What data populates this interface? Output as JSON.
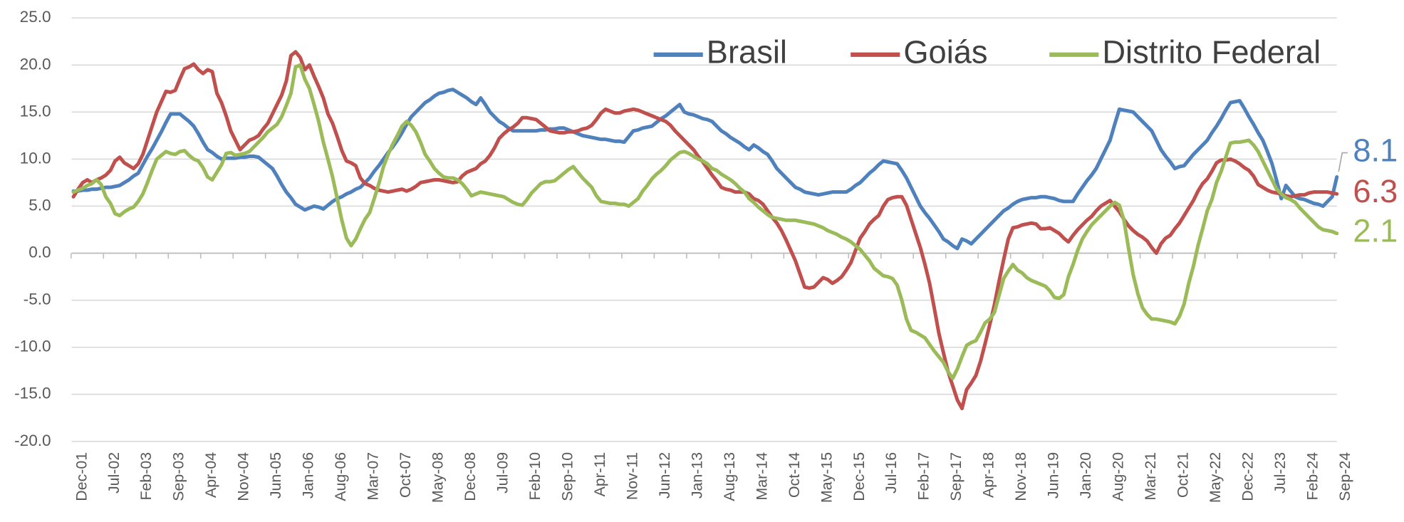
{
  "chart_data": {
    "type": "line",
    "categories": [
      "Dec-01",
      null,
      null,
      null,
      null,
      null,
      null,
      "Jul-02",
      null,
      null,
      null,
      null,
      null,
      null,
      "Feb-03",
      null,
      null,
      null,
      null,
      null,
      null,
      "Sep-03",
      null,
      null,
      null,
      null,
      null,
      null,
      "Apr-04",
      null,
      null,
      null,
      null,
      null,
      null,
      "Nov-04",
      null,
      null,
      null,
      null,
      null,
      null,
      "Jun-05",
      null,
      null,
      null,
      null,
      null,
      null,
      "Jan-06",
      null,
      null,
      null,
      null,
      null,
      null,
      "Aug-06",
      null,
      null,
      null,
      null,
      null,
      null,
      "Mar-07",
      null,
      null,
      null,
      null,
      null,
      null,
      "Oct-07",
      null,
      null,
      null,
      null,
      null,
      null,
      "May-08",
      null,
      null,
      null,
      null,
      null,
      null,
      "Dec-08",
      null,
      null,
      null,
      null,
      null,
      null,
      "Jul-09",
      null,
      null,
      null,
      null,
      null,
      null,
      "Feb-10",
      null,
      null,
      null,
      null,
      null,
      null,
      "Sep-10",
      null,
      null,
      null,
      null,
      null,
      null,
      "Apr-11",
      null,
      null,
      null,
      null,
      null,
      null,
      "Nov-11",
      null,
      null,
      null,
      null,
      null,
      null,
      "Jun-12",
      null,
      null,
      null,
      null,
      null,
      null,
      "Jan-13",
      null,
      null,
      null,
      null,
      null,
      null,
      "Aug-13",
      null,
      null,
      null,
      null,
      null,
      null,
      "Mar-14",
      null,
      null,
      null,
      null,
      null,
      null,
      "Oct-14",
      null,
      null,
      null,
      null,
      null,
      null,
      "May-15",
      null,
      null,
      null,
      null,
      null,
      null,
      "Dec-15",
      null,
      null,
      null,
      null,
      null,
      null,
      "Jul-16",
      null,
      null,
      null,
      null,
      null,
      null,
      "Feb-17",
      null,
      null,
      null,
      null,
      null,
      null,
      "Sep-17",
      null,
      null,
      null,
      null,
      null,
      null,
      "Apr-18",
      null,
      null,
      null,
      null,
      null,
      null,
      "Nov-18",
      null,
      null,
      null,
      null,
      null,
      null,
      "Jun-19",
      null,
      null,
      null,
      null,
      null,
      null,
      "Jan-20",
      null,
      null,
      null,
      null,
      null,
      null,
      "Aug-20",
      null,
      null,
      null,
      null,
      null,
      null,
      "Mar-21",
      null,
      null,
      null,
      null,
      null,
      null,
      "Oct-21",
      null,
      null,
      null,
      null,
      null,
      null,
      "May-22",
      null,
      null,
      null,
      null,
      null,
      null,
      "Dec-22",
      null,
      null,
      null,
      null,
      null,
      null,
      "Jul-23",
      null,
      null,
      null,
      null,
      null,
      null,
      "Feb-24",
      null,
      null,
      null,
      null,
      null,
      null,
      "Sep-24"
    ],
    "series": [
      {
        "name": "Brasil",
        "color": "#4f81bd",
        "values": [
          6.6,
          6.6,
          6.7,
          6.7,
          6.8,
          6.8,
          6.9,
          7.0,
          7.0,
          7.1,
          7.2,
          7.5,
          7.8,
          8.2,
          8.5,
          9.4,
          10.3,
          11.1,
          12,
          12.9,
          13.9,
          14.8,
          14.8,
          14.8,
          14.4,
          14.0,
          13.5,
          12.7,
          11.8,
          11,
          10.7,
          10.3,
          10,
          10.1,
          10.1,
          10.1,
          10.2,
          10.2,
          10.3,
          10.3,
          10.2,
          9.8,
          9.4,
          9,
          8.2,
          7.3,
          6.5,
          5.9,
          5.2,
          4.9,
          4.6,
          4.8,
          5,
          4.9,
          4.7,
          5.1,
          5.5,
          5.8,
          6,
          6.3,
          6.5,
          6.8,
          7,
          7.5,
          8,
          8.7,
          9.3,
          10,
          10.7,
          11.3,
          12,
          12.8,
          13.7,
          14.5,
          15,
          15.5,
          16,
          16.3,
          16.7,
          17,
          17.1,
          17.3,
          17.4,
          17.1,
          16.8,
          16.5,
          16.1,
          15.8,
          16.5,
          15.8,
          15,
          14.5,
          14,
          13.7,
          13.3,
          13,
          13,
          13,
          13,
          13,
          13,
          13.1,
          13.1,
          13.2,
          13.2,
          13.3,
          13.3,
          13.1,
          12.9,
          12.7,
          12.5,
          12.4,
          12.3,
          12.2,
          12.1,
          12.1,
          12,
          11.9,
          11.9,
          11.8,
          12.4,
          13,
          13.1,
          13.3,
          13.4,
          13.5,
          13.9,
          14.3,
          14.6,
          15,
          15.4,
          15.8,
          15,
          14.8,
          14.7,
          14.5,
          14.3,
          14.2,
          14,
          13.5,
          13,
          12.7,
          12.3,
          12,
          11.7,
          11.3,
          11,
          11.5,
          11.2,
          10.8,
          10.5,
          9.8,
          9,
          8.5,
          8,
          7.5,
          7,
          6.8,
          6.5,
          6.4,
          6.3,
          6.2,
          6.3,
          6.4,
          6.5,
          6.5,
          6.5,
          6.5,
          6.8,
          7.2,
          7.5,
          8,
          8.5,
          8.9,
          9.4,
          9.8,
          9.7,
          9.6,
          9.5,
          8.8,
          8,
          7,
          6,
          5,
          4.3,
          3.7,
          3,
          2.3,
          1.5,
          1.2,
          0.8,
          0.5,
          1.5,
          1.3,
          1,
          1.5,
          2,
          2.5,
          3,
          3.5,
          4,
          4.5,
          4.8,
          5.2,
          5.5,
          5.7,
          5.8,
          5.9,
          5.9,
          6,
          6,
          5.9,
          5.8,
          5.6,
          5.5,
          5.5,
          5.5,
          6.3,
          7,
          7.7,
          8.3,
          9,
          10,
          11,
          12,
          13.7,
          15.3,
          15.2,
          15.1,
          15,
          14.5,
          14,
          13.5,
          13,
          12,
          11,
          10.3,
          9.7,
          9,
          9.2,
          9.3,
          9.9,
          10.5,
          11,
          11.5,
          12,
          12.8,
          13.5,
          14.3,
          15.2,
          16,
          16.1,
          16.2,
          15.4,
          14.5,
          13.7,
          12.8,
          12,
          10.8,
          9.5,
          7.7,
          5.8,
          7.2,
          6.6,
          6,
          5.8,
          5.7,
          5.5,
          5.3,
          5.2,
          5,
          5.5,
          6,
          8.1
        ]
      },
      {
        "name": "Goiás",
        "color": "#c0504d",
        "values": [
          6,
          6.8,
          7.5,
          7.8,
          7.5,
          7.8,
          8,
          8.3,
          8.8,
          9.8,
          10.2,
          9.6,
          9.3,
          9,
          9.5,
          10.5,
          12,
          13.5,
          15,
          16.1,
          17.2,
          17.1,
          17.3,
          18.5,
          19.6,
          19.8,
          20.1,
          19.5,
          19.1,
          19.5,
          19.3,
          17,
          16,
          14.6,
          13,
          12,
          11,
          11.5,
          12,
          12.2,
          12.5,
          13.2,
          13.8,
          14.8,
          15.8,
          16.8,
          18.3,
          21,
          21.4,
          20.8,
          19.5,
          20,
          18.8,
          17.7,
          16.5,
          14.8,
          13.8,
          12.4,
          10.9,
          9.8,
          9.6,
          9.3,
          8,
          7.4,
          7.2,
          6.9,
          6.7,
          6.6,
          6.5,
          6.6,
          6.7,
          6.8,
          6.6,
          6.8,
          7.1,
          7.5,
          7.6,
          7.7,
          7.8,
          7.8,
          7.7,
          7.6,
          7.5,
          7.6,
          8.2,
          8.6,
          8.8,
          9,
          9.5,
          9.8,
          10.4,
          11.2,
          12.2,
          12.7,
          13.1,
          13.4,
          13.8,
          14.4,
          14.4,
          14.3,
          14.2,
          13.8,
          13.4,
          13,
          12.9,
          12.8,
          12.8,
          12.9,
          12.9,
          13,
          13.2,
          13.3,
          13.6,
          14.2,
          14.9,
          15.3,
          15.1,
          14.9,
          14.9,
          15.1,
          15.2,
          15.3,
          15.2,
          15,
          14.8,
          14.6,
          14.4,
          14.2,
          14,
          13.6,
          13,
          12.5,
          12,
          11.5,
          11,
          10.3,
          9.7,
          9,
          8.3,
          7.7,
          7,
          6.8,
          6.7,
          6.5,
          6.5,
          6.5,
          6.3,
          5.8,
          5.6,
          5.2,
          4.5,
          3.8,
          3.2,
          2.4,
          1.4,
          0.3,
          -0.8,
          -2.2,
          -3.6,
          -3.7,
          -3.6,
          -3.1,
          -2.6,
          -2.8,
          -3.2,
          -2.9,
          -2.5,
          -1.8,
          -1,
          0.3,
          1.6,
          2.3,
          3.1,
          3.6,
          4,
          5,
          5.7,
          5.9,
          6,
          6,
          5.1,
          3.6,
          2.1,
          0.6,
          -1.2,
          -3.2,
          -5.8,
          -8.5,
          -10.6,
          -12.6,
          -14.1,
          -15.6,
          -16.5,
          -14.5,
          -13.8,
          -13,
          -11.5,
          -9.6,
          -7.6,
          -5.5,
          -3,
          -0.7,
          1.5,
          2.7,
          2.8,
          3,
          3.1,
          3.2,
          3.1,
          2.6,
          2.6,
          2.7,
          2.4,
          2.1,
          1.6,
          1.2,
          1.9,
          2.5,
          3,
          3.5,
          3.9,
          4.5,
          5,
          5.3,
          5.6,
          5,
          4.4,
          3.6,
          2.9,
          2.4,
          2,
          1.7,
          1.3,
          0.6,
          0,
          1,
          1.6,
          1.9,
          2.6,
          3.2,
          4,
          4.8,
          5.6,
          6.6,
          7.4,
          7.9,
          8.7,
          9.6,
          9.9,
          9.9,
          10,
          9.8,
          9.5,
          9.1,
          8.8,
          8.2,
          7.3,
          7,
          6.7,
          6.5,
          6.4,
          6.3,
          6.1,
          6,
          6.1,
          6.2,
          6.2,
          6.4,
          6.5,
          6.5,
          6.5,
          6.5,
          6.4,
          6.3
        ]
      },
      {
        "name": "Distrito Federal",
        "color": "#9bbb59",
        "values": [
          6.5,
          6.7,
          6.9,
          7.2,
          7.4,
          7.8,
          7.3,
          6,
          5.3,
          4.2,
          4,
          4.4,
          4.7,
          4.9,
          5.5,
          6.3,
          7.5,
          8.8,
          10,
          10.4,
          10.8,
          10.6,
          10.5,
          10.8,
          10.9,
          10.4,
          10,
          9.8,
          9.1,
          8.1,
          7.8,
          8.6,
          9.4,
          10.6,
          10.7,
          10.4,
          10.5,
          10.6,
          10.8,
          11.3,
          11.8,
          12.3,
          12.9,
          13.3,
          13.7,
          14.5,
          15.7,
          17,
          19.8,
          20,
          18.5,
          17.5,
          15.8,
          14,
          11.8,
          10,
          8.1,
          5.8,
          3.5,
          1.6,
          0.8,
          1.5,
          2.6,
          3.6,
          4.3,
          5.8,
          7.4,
          9.2,
          10.5,
          11.6,
          12.5,
          13.5,
          14,
          13.6,
          12.9,
          11.8,
          10.5,
          9.8,
          9,
          8.5,
          8.1,
          8,
          8,
          7.8,
          7.4,
          6.8,
          6.1,
          6.3,
          6.5,
          6.4,
          6.3,
          6.2,
          6.1,
          6,
          5.7,
          5.4,
          5.2,
          5.1,
          5.7,
          6.4,
          6.9,
          7.4,
          7.6,
          7.6,
          7.7,
          8.1,
          8.5,
          8.9,
          9.2,
          8.6,
          8,
          7.5,
          7,
          6.1,
          5.5,
          5.4,
          5.3,
          5.3,
          5.2,
          5.2,
          5,
          5.4,
          5.8,
          6.6,
          7.2,
          7.9,
          8.4,
          8.8,
          9.3,
          9.9,
          10.3,
          10.7,
          10.8,
          10.6,
          10.3,
          10,
          9.8,
          9.5,
          9,
          8.8,
          8.4,
          8.1,
          7.8,
          7.4,
          6.9,
          6.5,
          5.8,
          5.4,
          4.9,
          4.5,
          4.1,
          3.8,
          3.7,
          3.6,
          3.5,
          3.5,
          3.5,
          3.4,
          3.3,
          3.2,
          3.1,
          2.9,
          2.7,
          2.4,
          2.2,
          2,
          1.7,
          1.5,
          1.2,
          0.8,
          0.4,
          -0.2,
          -0.8,
          -1.6,
          -2,
          -2.4,
          -2.5,
          -2.7,
          -3.4,
          -5,
          -7,
          -8.2,
          -8.4,
          -8.7,
          -9,
          -9.7,
          -10.4,
          -11,
          -11.6,
          -12.6,
          -13.3,
          -12.3,
          -11,
          -9.8,
          -9.5,
          -9.3,
          -8.4,
          -7.4,
          -7,
          -6.3,
          -4.5,
          -2.7,
          -1.9,
          -1.2,
          -1.8,
          -2.1,
          -2.6,
          -2.9,
          -3.1,
          -3.3,
          -3.5,
          -4,
          -4.7,
          -4.8,
          -4.4,
          -2.5,
          -1.2,
          0.3,
          1.5,
          2.3,
          3,
          3.5,
          4,
          4.5,
          5,
          5.4,
          5.1,
          3.5,
          0.5,
          -2.3,
          -4.3,
          -5.8,
          -6.5,
          -7,
          -7,
          -7.1,
          -7.2,
          -7.3,
          -7.5,
          -6.7,
          -5.4,
          -3.2,
          -1.4,
          0.8,
          2.6,
          4.5,
          5.7,
          7.5,
          8.7,
          10.2,
          11.7,
          11.8,
          11.8,
          11.9,
          12,
          11.5,
          10.8,
          9.8,
          8.8,
          7.8,
          6.8,
          6.3,
          5.9,
          5.7,
          5.4,
          4.8,
          4.3,
          3.8,
          3.3,
          2.8,
          2.5,
          2.4,
          2.3,
          2.1
        ]
      }
    ],
    "ylim": [
      -20,
      25
    ],
    "yticks": [
      {
        "value": -20,
        "label": "-20.0"
      },
      {
        "value": -15,
        "label": "-15.0"
      },
      {
        "value": -10,
        "label": "-10.0"
      },
      {
        "value": -5,
        "label": "-5.0"
      },
      {
        "value": 0,
        "label": "0.0"
      },
      {
        "value": 5,
        "label": "5.0"
      },
      {
        "value": 10,
        "label": "10.0"
      },
      {
        "value": 15,
        "label": "15.0"
      },
      {
        "value": 20,
        "label": "20.0"
      },
      {
        "value": 25,
        "label": "25.0"
      }
    ],
    "grid": true
  }
}
